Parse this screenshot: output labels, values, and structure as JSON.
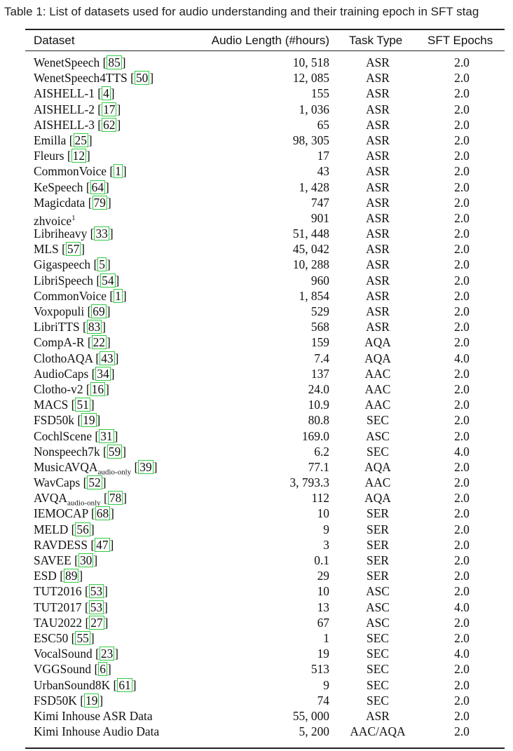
{
  "caption": "Table 1: List of datasets used for audio understanding and their training epoch in SFT stag",
  "columns": {
    "dataset": "Dataset",
    "length": "Audio Length (#hours)",
    "task": "Task Type",
    "epochs": "SFT Epochs"
  },
  "rows": [
    {
      "name": "WenetSpeech",
      "ref": "85",
      "length": "10, 518",
      "task": "ASR",
      "epochs": "2.0"
    },
    {
      "name": "WenetSpeech4TTS",
      "ref": "50",
      "length": "12, 085",
      "task": "ASR",
      "epochs": "2.0"
    },
    {
      "name": "AISHELL-1",
      "ref": "4",
      "length": "155",
      "task": "ASR",
      "epochs": "2.0"
    },
    {
      "name": "AISHELL-2",
      "ref": "17",
      "length": "1, 036",
      "task": "ASR",
      "epochs": "2.0"
    },
    {
      "name": "AISHELL-3",
      "ref": "62",
      "length": "65",
      "task": "ASR",
      "epochs": "2.0"
    },
    {
      "name": "Emilla",
      "ref": "25",
      "length": "98, 305",
      "task": "ASR",
      "epochs": "2.0"
    },
    {
      "name": "Fleurs",
      "ref": "12",
      "length": "17",
      "task": "ASR",
      "epochs": "2.0"
    },
    {
      "name": "CommonVoice",
      "ref": "1",
      "length": "43",
      "task": "ASR",
      "epochs": "2.0"
    },
    {
      "name": "KeSpeech",
      "ref": "64",
      "length": "1, 428",
      "task": "ASR",
      "epochs": "2.0"
    },
    {
      "name": "Magicdata",
      "ref": "79",
      "length": "747",
      "task": "ASR",
      "epochs": "2.0"
    },
    {
      "name": "zhvoice",
      "sup": "1",
      "length": "901",
      "task": "ASR",
      "epochs": "2.0"
    },
    {
      "name": "Libriheavy",
      "ref": "33",
      "length": "51, 448",
      "task": "ASR",
      "epochs": "2.0"
    },
    {
      "name": "MLS",
      "ref": "57",
      "length": "45, 042",
      "task": "ASR",
      "epochs": "2.0"
    },
    {
      "name": "Gigaspeech",
      "ref": "5",
      "length": "10, 288",
      "task": "ASR",
      "epochs": "2.0"
    },
    {
      "name": "LibriSpeech",
      "ref": "54",
      "length": "960",
      "task": "ASR",
      "epochs": "2.0"
    },
    {
      "name": "CommonVoice",
      "ref": "1",
      "length": "1, 854",
      "task": "ASR",
      "epochs": "2.0"
    },
    {
      "name": "Voxpopuli",
      "ref": "69",
      "length": "529",
      "task": "ASR",
      "epochs": "2.0"
    },
    {
      "name": "LibriTTS",
      "ref": "83",
      "length": "568",
      "task": "ASR",
      "epochs": "2.0"
    },
    {
      "name": "CompA-R",
      "ref": "22",
      "length": "159",
      "task": "AQA",
      "epochs": "2.0"
    },
    {
      "name": "ClothoAQA",
      "ref": "43",
      "length": "7.4",
      "task": "AQA",
      "epochs": "4.0"
    },
    {
      "name": "AudioCaps",
      "ref": "34",
      "length": "137",
      "task": "AAC",
      "epochs": "2.0"
    },
    {
      "name": "Clotho-v2",
      "ref": "16",
      "length": "24.0",
      "task": "AAC",
      "epochs": "2.0"
    },
    {
      "name": "MACS",
      "ref": "51",
      "length": "10.9",
      "task": "AAC",
      "epochs": "2.0"
    },
    {
      "name": "FSD50k",
      "ref": "19",
      "length": "80.8",
      "task": "SEC",
      "epochs": "2.0"
    },
    {
      "name": "CochlScene",
      "ref": "31",
      "length": "169.0",
      "task": "ASC",
      "epochs": "2.0"
    },
    {
      "name": "Nonspeech7k",
      "ref": "59",
      "length": "6.2",
      "task": "SEC",
      "epochs": "4.0"
    },
    {
      "name": "MusicAVQA",
      "sub": "audio-only",
      "ref": "39",
      "length": "77.1",
      "task": "AQA",
      "epochs": "2.0"
    },
    {
      "name": "WavCaps",
      "ref": "52",
      "length": "3, 793.3",
      "task": "AAC",
      "epochs": "2.0"
    },
    {
      "name": "AVQA",
      "sub": "audio-only",
      "ref": "78",
      "length": "112",
      "task": "AQA",
      "epochs": "2.0"
    },
    {
      "name": "IEMOCAP",
      "ref": "68",
      "length": "10",
      "task": "SER",
      "epochs": "2.0"
    },
    {
      "name": "MELD",
      "ref": "56",
      "length": "9",
      "task": "SER",
      "epochs": "2.0"
    },
    {
      "name": "RAVDESS",
      "ref": "47",
      "length": "3",
      "task": "SER",
      "epochs": "2.0"
    },
    {
      "name": "SAVEE",
      "ref": "30",
      "length": "0.1",
      "task": "SER",
      "epochs": "2.0"
    },
    {
      "name": "ESD",
      "ref": "89",
      "length": "29",
      "task": "SER",
      "epochs": "2.0"
    },
    {
      "name": "TUT2016",
      "ref": "53",
      "length": "10",
      "task": "ASC",
      "epochs": "2.0"
    },
    {
      "name": "TUT2017",
      "ref": "53",
      "length": "13",
      "task": "ASC",
      "epochs": "4.0"
    },
    {
      "name": "TAU2022",
      "ref": "27",
      "length": "67",
      "task": "ASC",
      "epochs": "2.0"
    },
    {
      "name": "ESC50",
      "ref": "55",
      "length": "1",
      "task": "SEC",
      "epochs": "2.0"
    },
    {
      "name": "VocalSound",
      "ref": "23",
      "length": "19",
      "task": "SEC",
      "epochs": "4.0"
    },
    {
      "name": "VGGSound",
      "ref": "6",
      "length": "513",
      "task": "SEC",
      "epochs": "2.0"
    },
    {
      "name": "UrbanSound8K",
      "ref": "61",
      "length": "9",
      "task": "SEC",
      "epochs": "2.0"
    },
    {
      "name": "FSD50K",
      "ref": "19",
      "length": "74",
      "task": "SEC",
      "epochs": "2.0"
    },
    {
      "name": "Kimi Inhouse ASR Data",
      "length": "55, 000",
      "task": "ASR",
      "epochs": "2.0"
    },
    {
      "name": "Kimi Inhouse Audio Data",
      "length": "5, 200",
      "task": "AAC/AQA",
      "epochs": "2.0"
    }
  ]
}
